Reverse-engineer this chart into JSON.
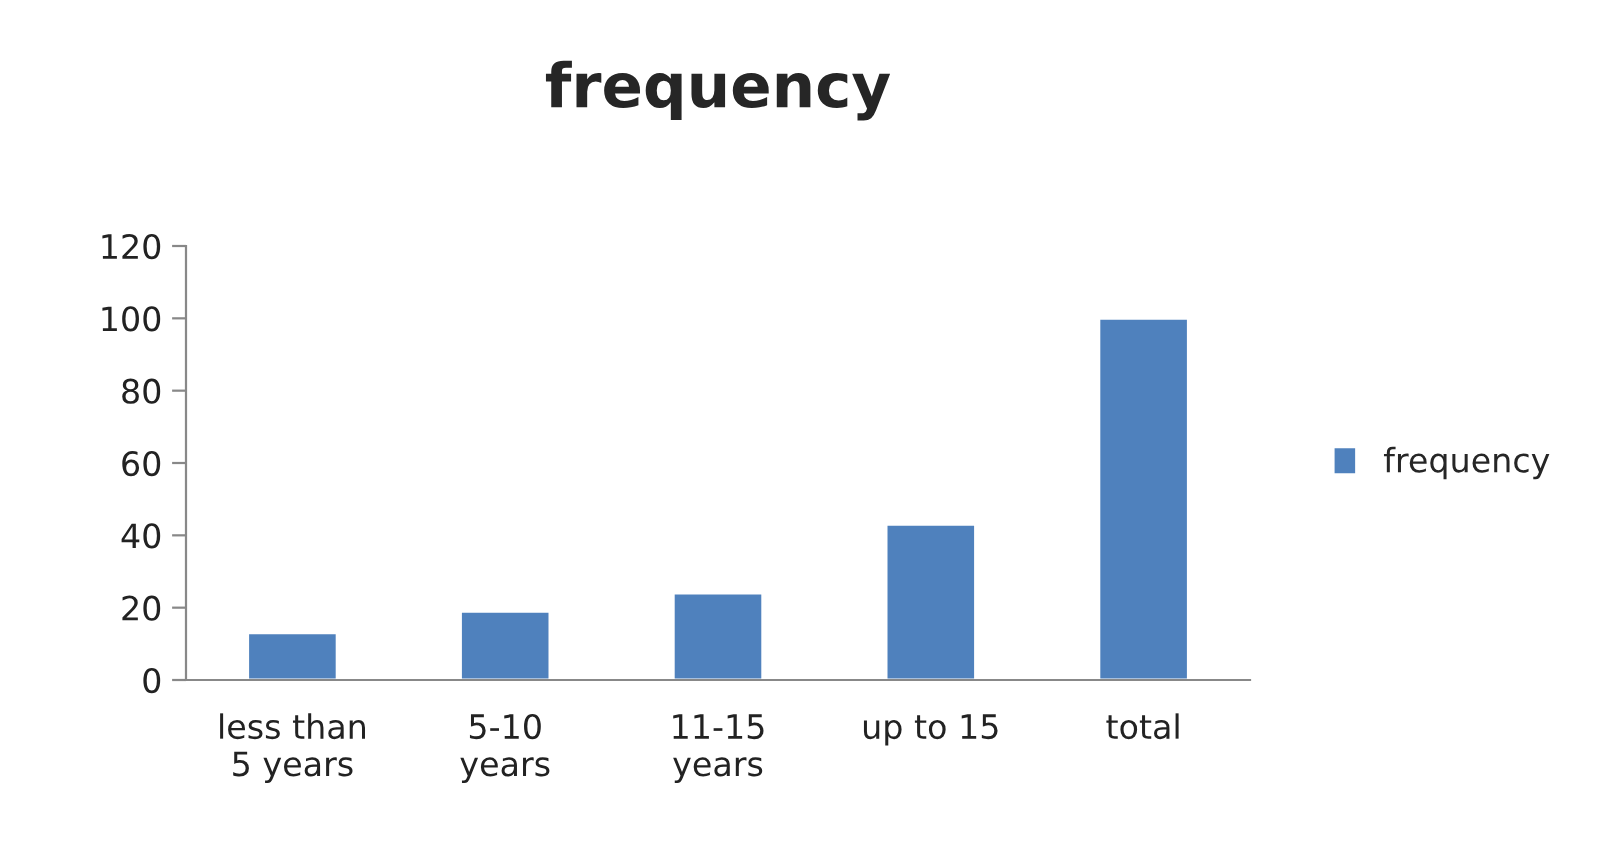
{
  "chart_data": {
    "type": "bar",
    "title": "frequency",
    "categories": [
      "less than\n5 years",
      "5-10\nyears",
      "11-15\nyears",
      "up to 15",
      "total"
    ],
    "series": [
      {
        "name": "frequency",
        "color": "#4f81bd",
        "values": [
          13,
          19,
          24,
          43,
          100
        ]
      }
    ],
    "ylim": [
      0,
      120
    ],
    "yticks": [
      0,
      20,
      40,
      60,
      80,
      100,
      120
    ],
    "grid": false,
    "legend": "right"
  }
}
